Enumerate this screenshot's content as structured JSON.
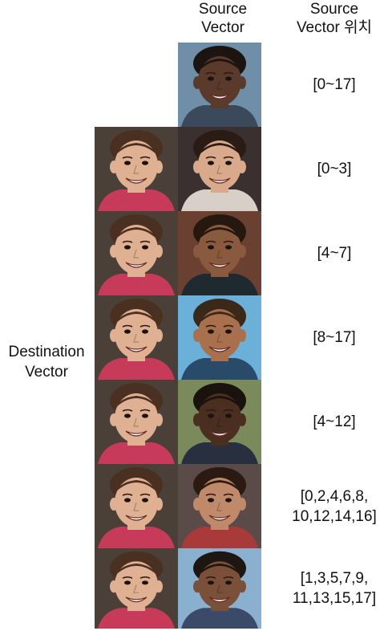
{
  "headers": {
    "source_line1": "Source",
    "source_line2": "Vector",
    "position_line1": "Source",
    "position_line2": "Vector 위치"
  },
  "side_label": {
    "line1": "Destination",
    "line2": "Vector"
  },
  "rows": [
    {
      "position": [
        "[0~17]"
      ],
      "source_face": {
        "skin": "#5a3a2a",
        "hair": "#1c1410",
        "bg": "#6f8fa8",
        "shirt": "#3a4a5a"
      },
      "has_destination": false
    },
    {
      "position": [
        "[0~3]"
      ],
      "source_face": {
        "skin": "#d9a98c",
        "hair": "#2a1c14",
        "bg": "#3a3030",
        "shirt": "#d8d0c8"
      },
      "has_destination": true
    },
    {
      "position": [
        "[4~7]"
      ],
      "source_face": {
        "skin": "#8a5a3e",
        "hair": "#24180f",
        "bg": "#6a4030",
        "shirt": "#1e2a30"
      },
      "has_destination": true
    },
    {
      "position": [
        "[8~17]"
      ],
      "source_face": {
        "skin": "#a8704c",
        "hair": "#3a2818",
        "bg": "#6ab0d8",
        "shirt": "#2a4a6a"
      },
      "has_destination": true
    },
    {
      "position": [
        "[4~12]"
      ],
      "source_face": {
        "skin": "#4a2e20",
        "hair": "#1a120c",
        "bg": "#7a8a5a",
        "shirt": "#283040"
      },
      "has_destination": true
    },
    {
      "position": [
        "[0,2,4,6,8,",
        "10,12,14,16]"
      ],
      "source_face": {
        "skin": "#c08a6a",
        "hair": "#2a1a12",
        "bg": "#5a4a48",
        "shirt": "#a83a3a"
      },
      "has_destination": true
    },
    {
      "position": [
        "[1,3,5,7,9,",
        "11,13,15,17]"
      ],
      "source_face": {
        "skin": "#7a5038",
        "hair": "#1e1610",
        "bg": "#8ab0d0",
        "shirt": "#3a4a68"
      },
      "has_destination": true
    }
  ],
  "destination_face": {
    "skin": "#e0b092",
    "hair": "#4a3020",
    "bg": "#4a4038",
    "shirt": "#c83a5a"
  }
}
